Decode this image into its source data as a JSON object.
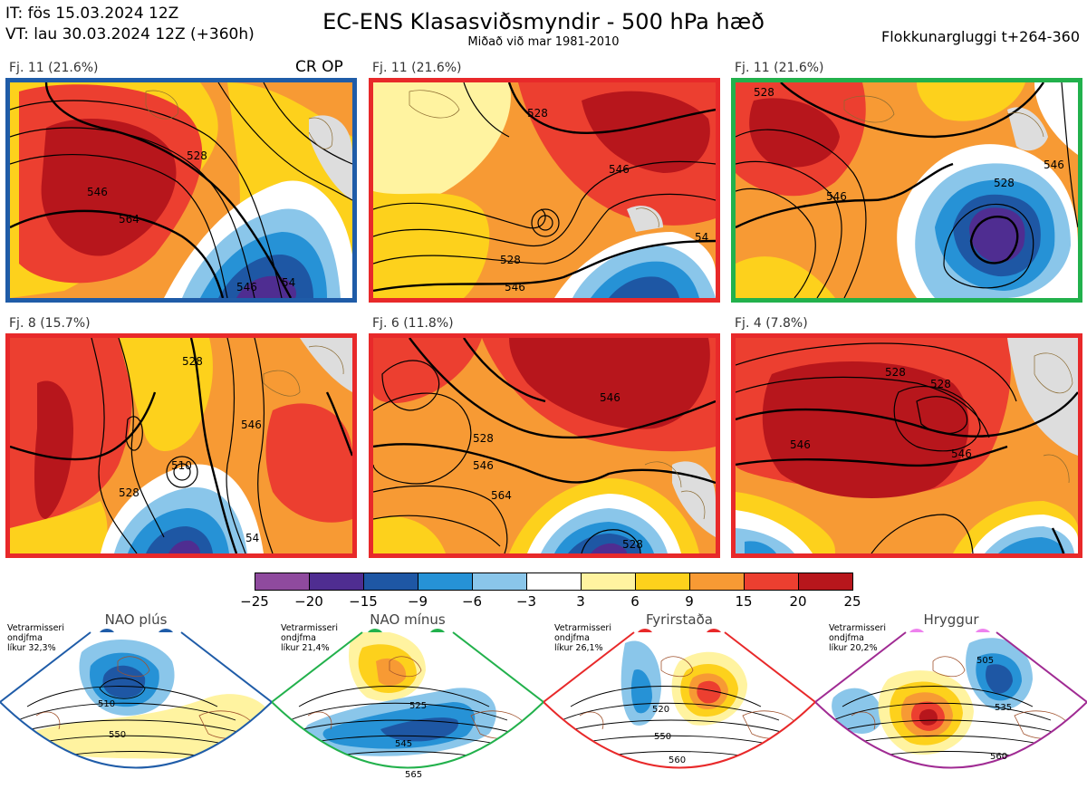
{
  "header": {
    "it_line": "IT: fös 15.03.2024 12Z",
    "vt_line": "VT: lau 30.03.2024 12Z  (+360h)",
    "title": "EC-ENS Klasasviðsmyndir - 500 hPa hæð",
    "subtitle": "Miðað við mar 1981-2010",
    "window": "Flokkunargluggi t+264-360"
  },
  "panels": [
    {
      "label": "Fj. 11 (21.6%)",
      "extra": "CR OP",
      "border": "#1f5ca8",
      "contours": [
        "528",
        "546",
        "564",
        "546",
        "54"
      ]
    },
    {
      "label": "Fj. 11 (21.6%)",
      "border": "#e8292a",
      "contours": [
        "528",
        "546",
        "528",
        "546",
        "54"
      ]
    },
    {
      "label": "Fj. 11 (21.6%)",
      "border": "#22b14c",
      "contours": [
        "528",
        "546",
        "528",
        "546"
      ]
    },
    {
      "label": "Fj. 8 (15.7%)",
      "border": "#e8292a",
      "contours": [
        "528",
        "546",
        "528",
        "510",
        "54"
      ]
    },
    {
      "label": "Fj. 6 (11.8%)",
      "border": "#e8292a",
      "contours": [
        "528",
        "546",
        "564",
        "546",
        "528"
      ]
    },
    {
      "label": "Fj. 4 (7.8%)",
      "border": "#e8292a",
      "contours": [
        "528",
        "546",
        "528",
        "546"
      ]
    }
  ],
  "colorbar": {
    "colors": [
      "#8f4a9e",
      "#4f2d91",
      "#1e57a4",
      "#2692d6",
      "#8ac6ea",
      "#ffffff",
      "#fff3a0",
      "#fdd11c",
      "#f79a34",
      "#ec3f30",
      "#b7161c"
    ],
    "ticks": [
      "−25",
      "−20",
      "−15",
      "−9",
      "−6",
      "−3",
      "3",
      "6",
      "9",
      "15",
      "20",
      "25"
    ]
  },
  "regimes": [
    {
      "name": "NAO plús",
      "note_1": "Vetrarmisseri",
      "note_2": "ondjfma",
      "note_3": "líkur 32,3%",
      "color": "#1f5ca8",
      "labels": [
        "510",
        "550"
      ]
    },
    {
      "name": "NAO mínus",
      "note_1": "Vetrarmisseri",
      "note_2": "ondjfma",
      "note_3": "líkur 21,4%",
      "color": "#22b14c",
      "labels": [
        "525",
        "545",
        "565"
      ]
    },
    {
      "name": "Fyrirstaða",
      "note_1": "Vetrarmisseri",
      "note_2": "ondjfma",
      "note_3": "líkur 26,1%",
      "color": "#e8292a",
      "labels": [
        "520",
        "550",
        "560"
      ]
    },
    {
      "name": "Hryggur",
      "note_1": "Vetrarmisseri",
      "note_2": "ondjfma",
      "note_3": "líkur 20,2%",
      "color": "#a02b93",
      "dot_color": "#ee82ee",
      "labels": [
        "505",
        "535",
        "560"
      ]
    }
  ]
}
